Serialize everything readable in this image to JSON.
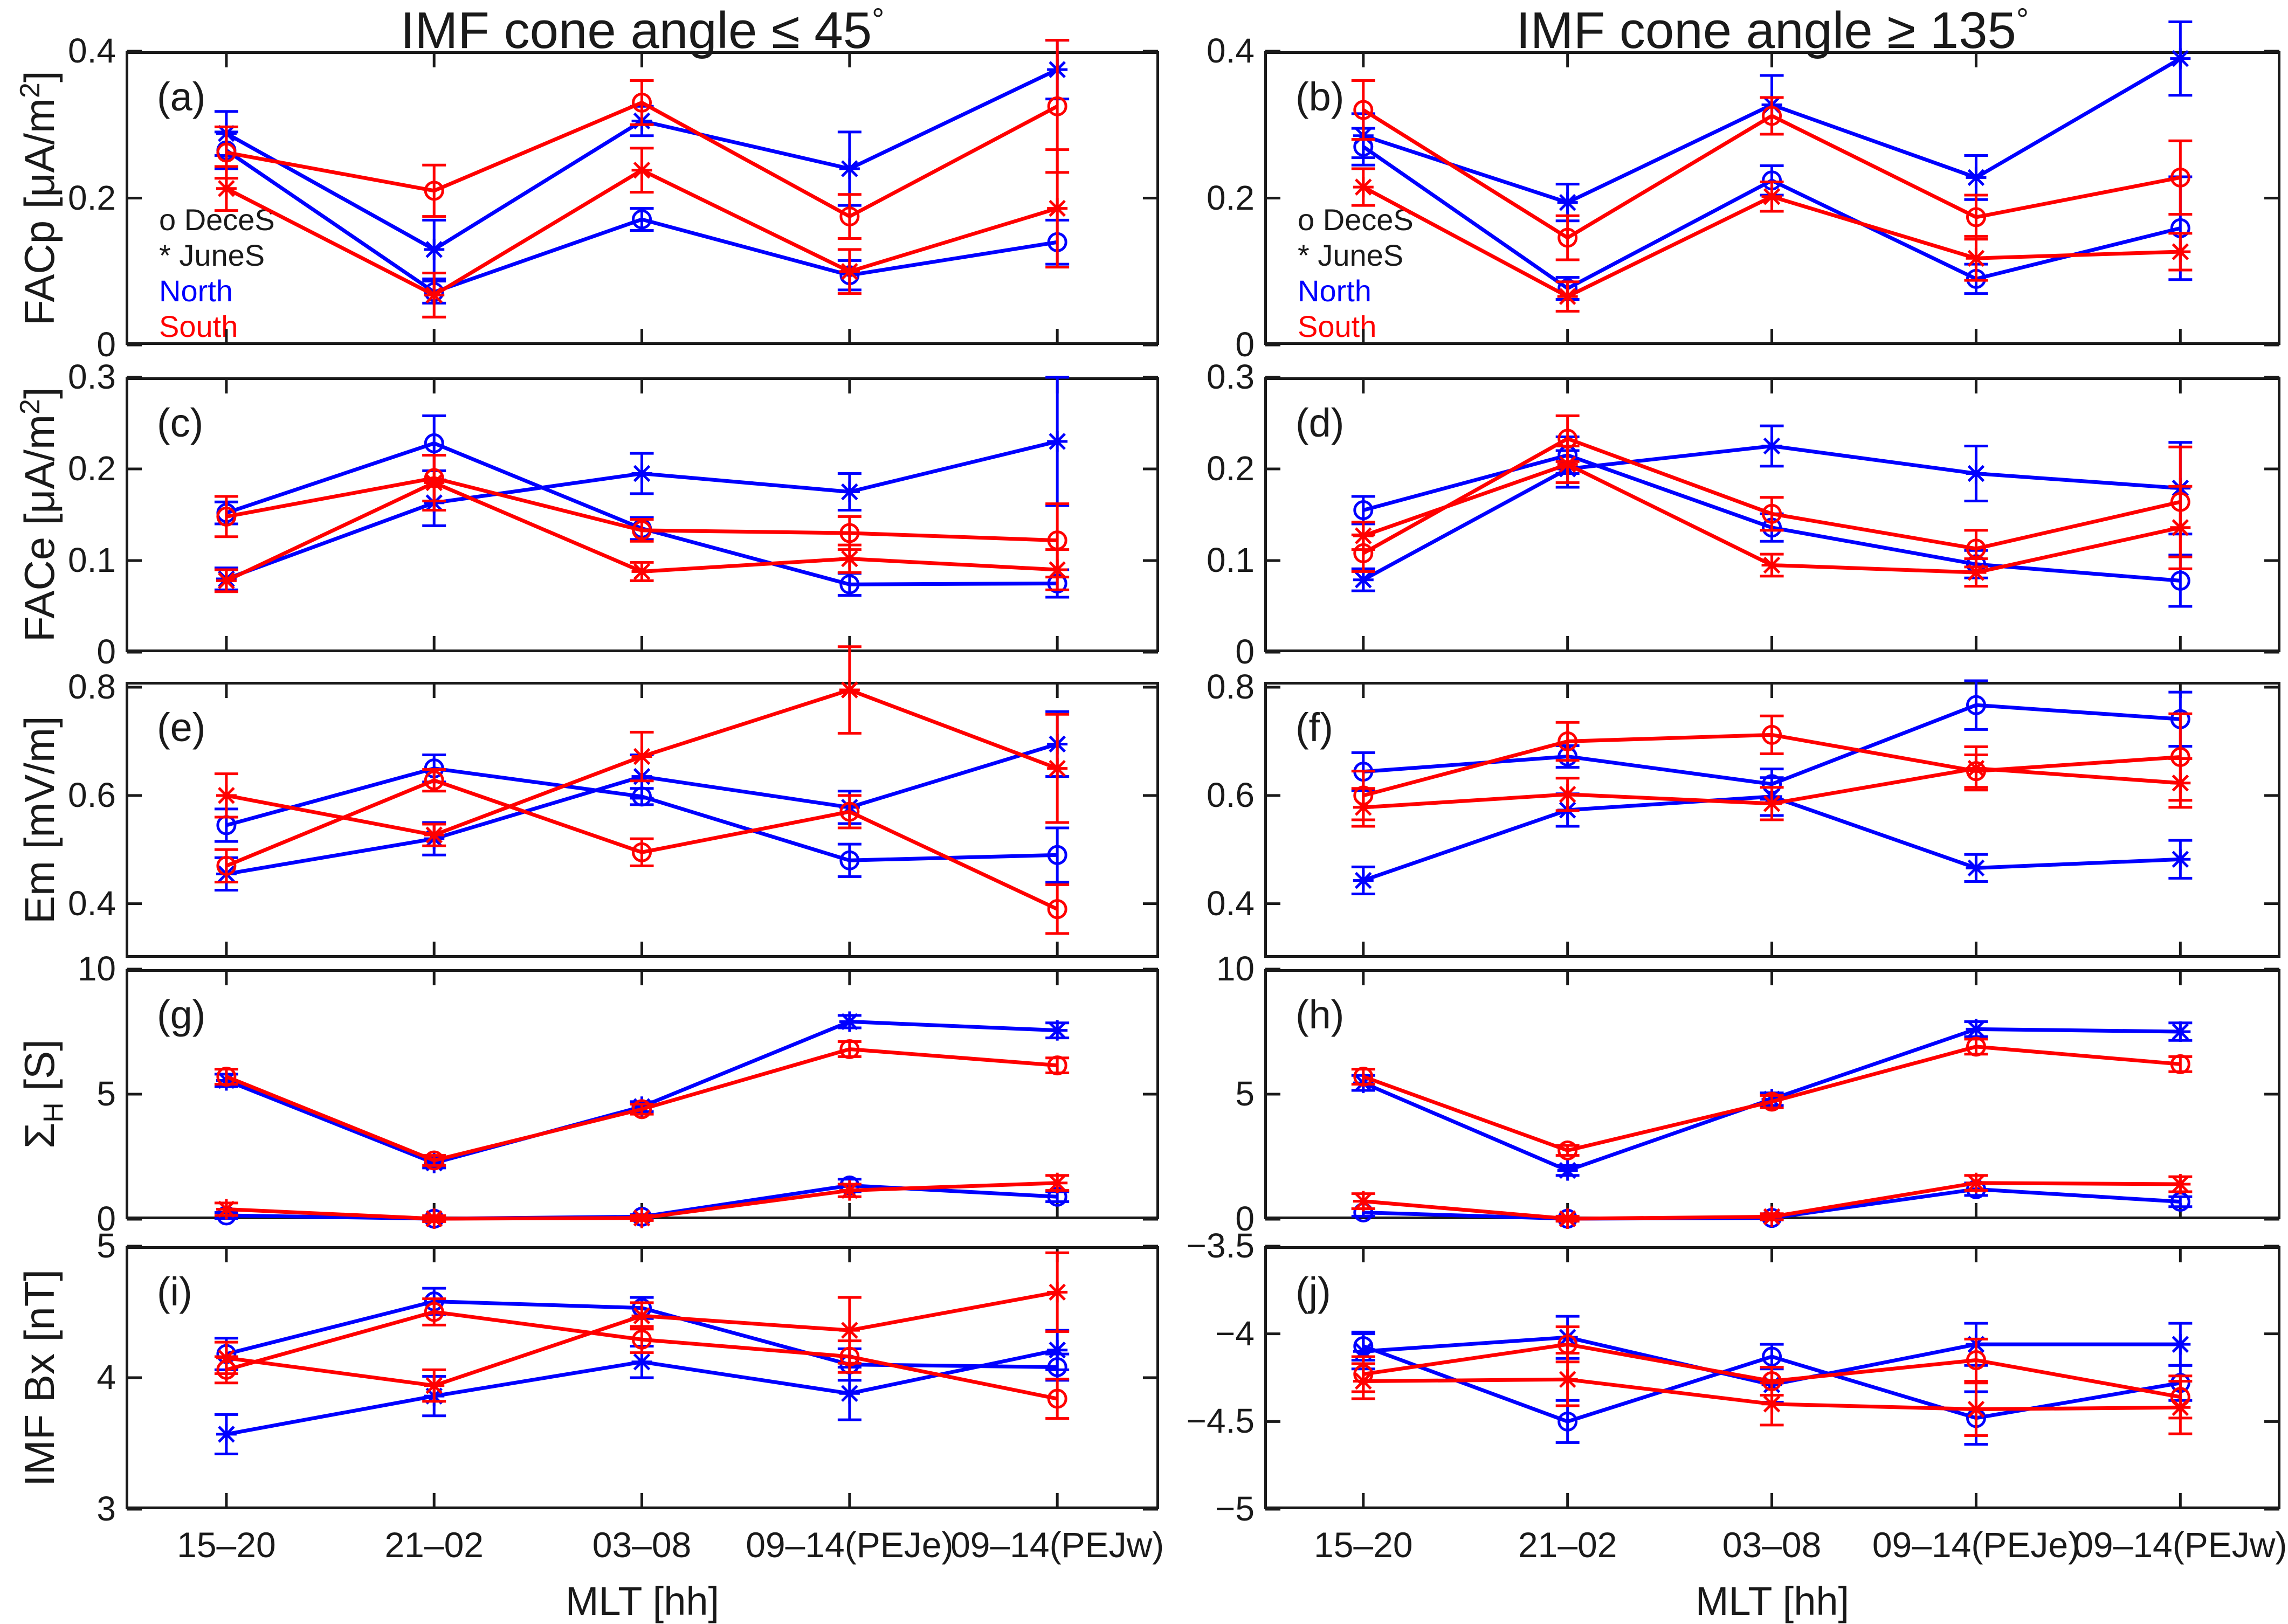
{
  "column_titles": [
    {
      "text": "IMF cone angle ≤ 45",
      "degree": "°"
    },
    {
      "text": "IMF cone angle ≥ 135",
      "degree": "°"
    }
  ],
  "xlabel": "MLT [hh]",
  "legend": {
    "deces": "o DeceS",
    "junes": "* JuneS",
    "north": "North",
    "south": "South"
  },
  "colors": {
    "north": "#0000FF",
    "south": "#FF0000",
    "frame": "#1a1a1a",
    "text": "#1a1a1a"
  },
  "ylabels": [
    {
      "pre": "FACp [μA/m",
      "sup": "2",
      "post": "]"
    },
    {
      "pre": "FACe [μA/m",
      "sup": "2",
      "post": "]"
    },
    {
      "pre": "Em [mV/m]"
    },
    {
      "pre": "Σ",
      "sub": "H",
      "post": " [S]"
    },
    {
      "pre": "IMF Bx [nT]"
    }
  ],
  "chart_data": {
    "type": "line",
    "categories": [
      "15–20",
      "21–02",
      "03–08",
      "09–14(PEJe)",
      "09–14(PEJw)"
    ],
    "grid": false,
    "legend_position": "inside-left",
    "series_meta": {
      "north_deces": {
        "label": "North DeceS",
        "color": "north",
        "marker": "circle"
      },
      "north_junes": {
        "label": "North JuneS",
        "color": "north",
        "marker": "asterisk"
      },
      "south_deces": {
        "label": "South DeceS",
        "color": "south",
        "marker": "circle"
      },
      "south_junes": {
        "label": "South JuneS",
        "color": "south",
        "marker": "asterisk"
      }
    },
    "panels": [
      {
        "letter": "(a)",
        "col": 0,
        "row": 0,
        "legend": true,
        "ylim": [
          0,
          0.4
        ],
        "yticks": [
          0,
          0.2,
          0.4
        ],
        "ytick_labels": [
          "0",
          "0.2",
          "0.4"
        ],
        "series": {
          "north_deces": {
            "values": [
              0.265,
              0.072,
              0.171,
              0.095,
              0.14
            ],
            "err": [
              0.025,
              0.015,
              0.015,
              0.02,
              0.03
            ]
          },
          "north_junes": {
            "values": [
              0.288,
              0.13,
              0.305,
              0.24,
              0.375
            ],
            "err": [
              0.03,
              0.04,
              0.02,
              0.05,
              0.04
            ]
          },
          "south_deces": {
            "values": [
              0.262,
              0.21,
              0.33,
              0.175,
              0.325
            ],
            "err": [
              0.035,
              0.035,
              0.03,
              0.03,
              0.09
            ]
          },
          "south_junes": {
            "values": [
              0.213,
              0.068,
              0.238,
              0.1,
              0.186
            ],
            "err": [
              0.03,
              0.03,
              0.03,
              0.03,
              0.08
            ]
          }
        }
      },
      {
        "letter": "(b)",
        "col": 1,
        "row": 0,
        "legend": true,
        "ylim": [
          0,
          0.4
        ],
        "yticks": [
          0,
          0.2,
          0.4
        ],
        "ytick_labels": [
          "0",
          "0.2",
          "0.4"
        ],
        "series": {
          "north_deces": {
            "values": [
              0.27,
              0.077,
              0.224,
              0.09,
              0.159
            ],
            "err": [
              0.025,
              0.015,
              0.02,
              0.02,
              0.07
            ]
          },
          "north_junes": {
            "values": [
              0.285,
              0.194,
              0.327,
              0.228,
              0.39
            ],
            "err": [
              0.03,
              0.025,
              0.04,
              0.03,
              0.05
            ]
          },
          "south_deces": {
            "values": [
              0.32,
              0.146,
              0.312,
              0.174,
              0.228
            ],
            "err": [
              0.04,
              0.03,
              0.025,
              0.03,
              0.05
            ]
          },
          "south_junes": {
            "values": [
              0.215,
              0.066,
              0.202,
              0.118,
              0.127
            ],
            "err": [
              0.025,
              0.02,
              0.02,
              0.03,
              0.025
            ]
          }
        }
      },
      {
        "letter": "(c)",
        "col": 0,
        "row": 1,
        "legend": false,
        "ylim": [
          0,
          0.3
        ],
        "yticks": [
          0,
          0.1,
          0.2,
          0.3
        ],
        "ytick_labels": [
          "0",
          "0.1",
          "0.2",
          "0.3"
        ],
        "series": {
          "north_deces": {
            "values": [
              0.152,
              0.228,
              0.135,
              0.074,
              0.075
            ],
            "err": [
              0.012,
              0.03,
              0.012,
              0.012,
              0.015
            ]
          },
          "north_junes": {
            "values": [
              0.08,
              0.163,
              0.195,
              0.175,
              0.23
            ],
            "err": [
              0.012,
              0.025,
              0.022,
              0.02,
              0.07
            ]
          },
          "south_deces": {
            "values": [
              0.148,
              0.19,
              0.133,
              0.13,
              0.122
            ],
            "err": [
              0.022,
              0.025,
              0.012,
              0.018,
              0.04
            ]
          },
          "south_junes": {
            "values": [
              0.078,
              0.185,
              0.088,
              0.102,
              0.09
            ],
            "err": [
              0.012,
              0.03,
              0.01,
              0.015,
              0.022
            ]
          }
        }
      },
      {
        "letter": "(d)",
        "col": 1,
        "row": 1,
        "legend": false,
        "ylim": [
          0,
          0.3
        ],
        "yticks": [
          0,
          0.1,
          0.2,
          0.3
        ],
        "ytick_labels": [
          "0",
          "0.1",
          "0.2",
          "0.3"
        ],
        "series": {
          "north_deces": {
            "values": [
              0.155,
              0.215,
              0.136,
              0.096,
              0.078
            ],
            "err": [
              0.015,
              0.02,
              0.015,
              0.015,
              0.028
            ]
          },
          "north_junes": {
            "values": [
              0.079,
              0.2,
              0.225,
              0.195,
              0.179
            ],
            "err": [
              0.012,
              0.02,
              0.022,
              0.03,
              0.05
            ]
          },
          "south_deces": {
            "values": [
              0.108,
              0.233,
              0.151,
              0.113,
              0.164
            ],
            "err": [
              0.02,
              0.025,
              0.018,
              0.02,
              0.06
            ]
          },
          "south_junes": {
            "values": [
              0.127,
              0.205,
              0.095,
              0.087,
              0.136
            ],
            "err": [
              0.015,
              0.02,
              0.012,
              0.015,
              0.045
            ]
          }
        }
      },
      {
        "letter": "(e)",
        "col": 0,
        "row": 2,
        "legend": false,
        "ylim": [
          0.3,
          0.81
        ],
        "yticks": [
          0.4,
          0.6,
          0.8
        ],
        "ytick_labels": [
          "0.4",
          "0.6",
          "0.8"
        ],
        "series": {
          "north_deces": {
            "values": [
              0.545,
              0.65,
              0.598,
              0.48,
              0.49
            ],
            "err": [
              0.03,
              0.025,
              0.015,
              0.03,
              0.05
            ]
          },
          "north_junes": {
            "values": [
              0.455,
              0.52,
              0.635,
              0.578,
              0.695
            ],
            "err": [
              0.03,
              0.03,
              0.04,
              0.03,
              0.06
            ]
          },
          "south_deces": {
            "values": [
              0.47,
              0.628,
              0.495,
              0.57,
              0.39
            ],
            "err": [
              0.03,
              0.02,
              0.025,
              0.03,
              0.045
            ]
          },
          "south_junes": {
            "values": [
              0.6,
              0.527,
              0.672,
              0.795,
              0.65
            ],
            "err": [
              0.04,
              0.02,
              0.045,
              0.08,
              0.1
            ]
          }
        }
      },
      {
        "letter": "(f)",
        "col": 1,
        "row": 2,
        "legend": false,
        "ylim": [
          0.3,
          0.81
        ],
        "yticks": [
          0.4,
          0.6,
          0.8
        ],
        "ytick_labels": [
          "0.4",
          "0.6",
          "0.8"
        ],
        "series": {
          "north_deces": {
            "values": [
              0.644,
              0.672,
              0.621,
              0.767,
              0.741
            ],
            "err": [
              0.035,
              0.02,
              0.028,
              0.045,
              0.05
            ]
          },
          "north_junes": {
            "values": [
              0.443,
              0.573,
              0.598,
              0.466,
              0.482
            ],
            "err": [
              0.025,
              0.03,
              0.035,
              0.025,
              0.035
            ]
          },
          "south_deces": {
            "values": [
              0.6,
              0.7,
              0.712,
              0.645,
              0.671
            ],
            "err": [
              0.045,
              0.035,
              0.035,
              0.03,
              0.08
            ]
          },
          "south_junes": {
            "values": [
              0.578,
              0.602,
              0.585,
              0.65,
              0.623
            ],
            "err": [
              0.035,
              0.03,
              0.03,
              0.04,
              0.045
            ]
          }
        }
      },
      {
        "letter": "(g)",
        "col": 0,
        "row": 3,
        "legend": false,
        "ylim": [
          0,
          10
        ],
        "yticks": [
          0,
          5,
          10
        ],
        "ytick_labels": [
          "0",
          "5",
          "10"
        ],
        "series": {
          "north_deces": {
            "values": [
              0.15,
              0.02,
              0.1,
              1.35,
              0.9
            ],
            "err": [
              0.12,
              0.06,
              0.08,
              0.25,
              0.2
            ]
          },
          "north_junes": {
            "values": [
              5.55,
              2.25,
              4.5,
              7.9,
              7.55
            ],
            "err": [
              0.25,
              0.2,
              0.2,
              0.25,
              0.3
            ]
          },
          "south_deces": {
            "values": [
              5.7,
              2.35,
              4.4,
              6.8,
              6.15
            ],
            "err": [
              0.3,
              0.2,
              0.2,
              0.3,
              0.3
            ]
          },
          "south_junes": {
            "values": [
              0.4,
              0.02,
              0.05,
              1.15,
              1.45
            ],
            "err": [
              0.25,
              0.12,
              0.1,
              0.25,
              0.3
            ]
          }
        }
      },
      {
        "letter": "(h)",
        "col": 1,
        "row": 3,
        "legend": false,
        "ylim": [
          0,
          10
        ],
        "yticks": [
          0,
          5,
          10
        ],
        "ytick_labels": [
          "0",
          "5",
          "10"
        ],
        "series": {
          "north_deces": {
            "values": [
              0.27,
              0.02,
              0.05,
              1.2,
              0.7
            ],
            "err": [
              0.15,
              0.06,
              0.08,
              0.25,
              0.2
            ]
          },
          "north_junes": {
            "values": [
              5.45,
              1.95,
              4.8,
              7.6,
              7.5
            ],
            "err": [
              0.3,
              0.2,
              0.25,
              0.3,
              0.35
            ]
          },
          "south_deces": {
            "values": [
              5.7,
              2.75,
              4.7,
              6.9,
              6.2
            ],
            "err": [
              0.3,
              0.2,
              0.25,
              0.3,
              0.3
            ]
          },
          "south_junes": {
            "values": [
              0.72,
              0.02,
              0.1,
              1.45,
              1.4
            ],
            "err": [
              0.3,
              0.1,
              0.12,
              0.3,
              0.3
            ]
          }
        }
      },
      {
        "letter": "(i)",
        "col": 0,
        "row": 4,
        "legend": false,
        "ylim": [
          3,
          5
        ],
        "yticks": [
          3,
          4,
          5
        ],
        "ytick_labels": [
          "3",
          "4",
          "5"
        ],
        "series": {
          "north_deces": {
            "values": [
              4.18,
              4.58,
              4.53,
              4.1,
              4.08
            ],
            "err": [
              0.12,
              0.1,
              0.08,
              0.12,
              0.1
            ]
          },
          "north_junes": {
            "values": [
              3.57,
              3.86,
              4.12,
              3.88,
              4.21
            ],
            "err": [
              0.15,
              0.15,
              0.12,
              0.2,
              0.15
            ]
          },
          "south_deces": {
            "values": [
              4.06,
              4.5,
              4.29,
              4.16,
              3.84
            ],
            "err": [
              0.1,
              0.1,
              0.1,
              0.12,
              0.15
            ]
          },
          "south_junes": {
            "values": [
              4.15,
              3.94,
              4.47,
              4.36,
              4.65
            ],
            "err": [
              0.12,
              0.12,
              0.1,
              0.25,
              0.3
            ]
          }
        }
      },
      {
        "letter": "(j)",
        "col": 1,
        "row": 4,
        "legend": false,
        "ylim": [
          -5,
          -3.5
        ],
        "yticks": [
          -5,
          -4.5,
          -4,
          -3.5
        ],
        "ytick_labels": [
          "−5",
          "−4.5",
          "−4",
          "−3.5"
        ],
        "series": {
          "north_deces": {
            "values": [
              -4.07,
              -4.5,
              -4.13,
              -4.48,
              -4.28
            ],
            "err": [
              0.08,
              0.12,
              0.07,
              0.15,
              0.1
            ]
          },
          "north_junes": {
            "values": [
              -4.1,
              -4.02,
              -4.29,
              -4.06,
              -4.06
            ],
            "err": [
              0.1,
              0.12,
              0.1,
              0.12,
              0.12
            ]
          },
          "south_deces": {
            "values": [
              -4.23,
              -4.06,
              -4.27,
              -4.15,
              -4.36
            ],
            "err": [
              0.1,
              0.1,
              0.08,
              0.12,
              0.12
            ]
          },
          "south_junes": {
            "values": [
              -4.27,
              -4.26,
              -4.4,
              -4.43,
              -4.42
            ],
            "err": [
              0.1,
              0.15,
              0.12,
              0.15,
              0.15
            ]
          }
        }
      }
    ]
  }
}
